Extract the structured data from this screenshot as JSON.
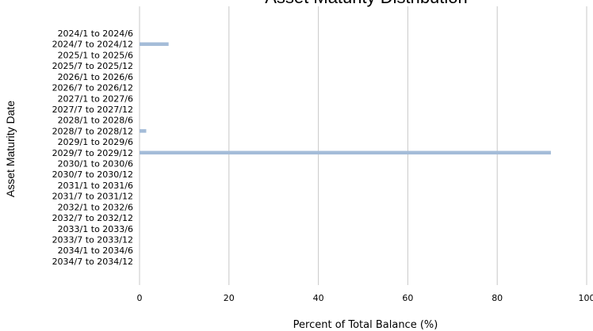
{
  "chart_data": {
    "type": "bar",
    "orientation": "horizontal",
    "title": "Asset Maturity Distribution",
    "xlabel": "Percent of Total Balance (%)",
    "ylabel": "Asset Maturity Date",
    "xlim": [
      0,
      100
    ],
    "xticks": [
      "0",
      "20",
      "40",
      "60",
      "80",
      "100"
    ],
    "grid": "vertical",
    "bar_color": "#a4bcd8",
    "categories": [
      "2024/1 to 2024/6",
      "2024/7 to 2024/12",
      "2025/1 to 2025/6",
      "2025/7 to 2025/12",
      "2026/1 to 2026/6",
      "2026/7 to 2026/12",
      "2027/1 to 2027/6",
      "2027/7 to 2027/12",
      "2028/1 to 2028/6",
      "2028/7 to 2028/12",
      "2029/1 to 2029/6",
      "2029/7 to 2029/12",
      "2030/1 to 2030/6",
      "2030/7 to 2030/12",
      "2031/1 to 2031/6",
      "2031/7 to 2031/12",
      "2032/1 to 2032/6",
      "2032/7 to 2032/12",
      "2033/1 to 2033/6",
      "2033/7 to 2033/12",
      "2034/1 to 2034/6",
      "2034/7 to 2034/12"
    ],
    "values": [
      0,
      6.5,
      0,
      0,
      0,
      0,
      0,
      0,
      0,
      1.5,
      0,
      92,
      0,
      0,
      0,
      0,
      0,
      0,
      0,
      0,
      0,
      0
    ]
  }
}
